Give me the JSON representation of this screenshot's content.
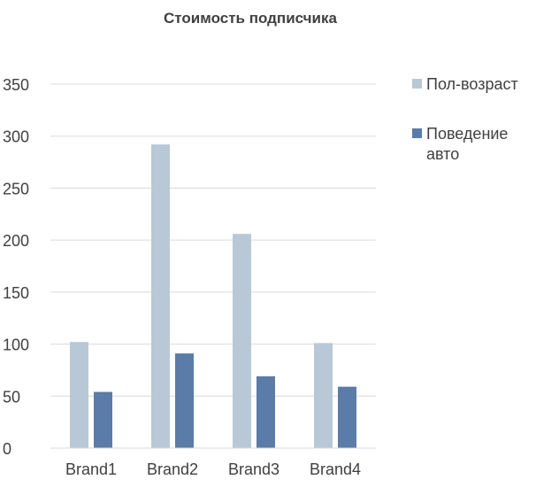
{
  "chart_data": {
    "type": "bar",
    "title": "Стоимость подписчика",
    "categories": [
      "Brand1",
      "Brand2",
      "Brand3",
      "Brand4"
    ],
    "series": [
      {
        "name": "Пол-возраст",
        "values": [
          102,
          292,
          206,
          101
        ],
        "color": "#b9c8d6"
      },
      {
        "name": "Поведение авто",
        "values": [
          54,
          91,
          69,
          59
        ],
        "color": "#5b7ba8"
      }
    ],
    "y_ticks": [
      "0",
      "50",
      "100",
      "150",
      "200",
      "250",
      "300",
      "350"
    ],
    "ylim": [
      0,
      350
    ],
    "grid": true,
    "legend_position": "right",
    "legend_lines": [
      [
        "Пол-возраст"
      ],
      [
        "Поведение",
        "авто"
      ]
    ],
    "xlabel": "",
    "ylabel": ""
  }
}
